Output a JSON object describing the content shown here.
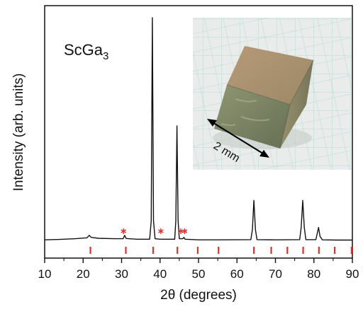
{
  "chart_data": {
    "type": "line",
    "compound": "ScGa",
    "compound_subscript": "3",
    "xlabel": "2θ (degrees)",
    "ylabel": "Intensity (arb. units)",
    "xlim": [
      10,
      90
    ],
    "ylim": [
      0,
      1.0
    ],
    "x_ticks": [
      10,
      20,
      30,
      40,
      50,
      60,
      70,
      80,
      90
    ],
    "series": [
      {
        "points": [
          [
            10,
            0.015
          ],
          [
            14,
            0.017
          ],
          [
            18,
            0.02
          ],
          [
            21,
            0.024
          ],
          [
            21.6,
            0.035
          ],
          [
            22.1,
            0.026
          ],
          [
            24,
            0.022
          ],
          [
            28,
            0.02
          ],
          [
            30.4,
            0.02
          ],
          [
            30.8,
            0.035
          ],
          [
            31.2,
            0.021
          ],
          [
            34,
            0.018
          ],
          [
            37.3,
            0.018
          ],
          [
            37.7,
            0.1
          ],
          [
            38.0,
            1.0
          ],
          [
            38.3,
            0.1
          ],
          [
            38.7,
            0.02
          ],
          [
            40,
            0.018
          ],
          [
            43.8,
            0.018
          ],
          [
            44.1,
            0.1
          ],
          [
            44.4,
            0.52
          ],
          [
            44.7,
            0.1
          ],
          [
            45.0,
            0.02
          ],
          [
            45.9,
            0.02
          ],
          [
            46.2,
            0.026
          ],
          [
            46.5,
            0.018
          ],
          [
            50,
            0.015
          ],
          [
            55,
            0.015
          ],
          [
            63.6,
            0.016
          ],
          [
            64.0,
            0.06
          ],
          [
            64.4,
            0.19
          ],
          [
            64.8,
            0.06
          ],
          [
            65.2,
            0.016
          ],
          [
            70,
            0.015
          ],
          [
            76.3,
            0.016
          ],
          [
            76.7,
            0.07
          ],
          [
            77.1,
            0.19
          ],
          [
            77.5,
            0.07
          ],
          [
            77.9,
            0.016
          ],
          [
            80.5,
            0.016
          ],
          [
            80.9,
            0.045
          ],
          [
            81.2,
            0.07
          ],
          [
            81.6,
            0.03
          ],
          [
            82.2,
            0.015
          ],
          [
            86,
            0.014
          ],
          [
            90,
            0.014
          ]
        ]
      }
    ],
    "impurity_markers_x": [
      30.5,
      40.2,
      45.4,
      46.4
    ],
    "bragg_positions_x": [
      21.9,
      31.1,
      38.2,
      44.5,
      49.8,
      55.2,
      64.4,
      68.9,
      73.1,
      77.2,
      81.3,
      85.4,
      89.8
    ],
    "colors": {
      "trace": "#111111",
      "markers": "#e0302a"
    },
    "inset": {
      "kind": "photo",
      "subject": "cube-shaped ScGa3 crystal on grid paper",
      "scale_label": "2 mm"
    }
  }
}
